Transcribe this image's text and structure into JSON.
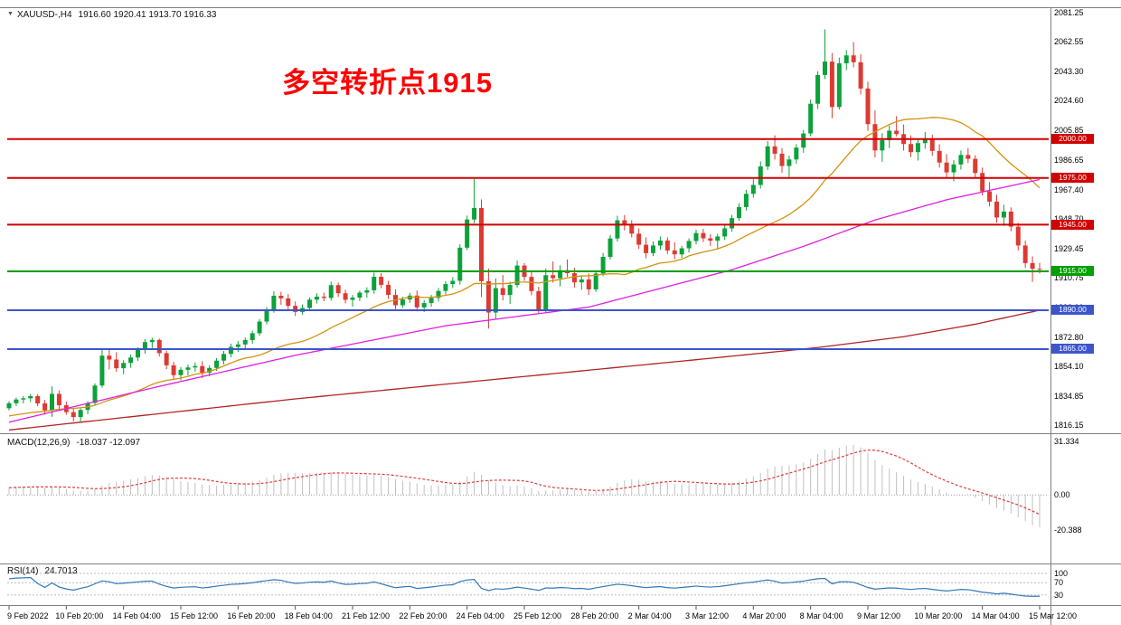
{
  "header": {
    "symbol": "XAUUSD-,H4",
    "ohlc": "1916.60 1920.41 1913.70 1916.33"
  },
  "annotation": {
    "text": "多空转折点1915",
    "color": "#ff0000"
  },
  "panels": {
    "macd": {
      "name_label": "MACD(12,26,9)",
      "value_label": "-18.037 -12.097",
      "ylim": [
        -39,
        35
      ],
      "axis": [
        {
          "label": "31.334",
          "value": 31.334
        },
        {
          "label": "0.00",
          "value": 0
        },
        {
          "label": "-20.388",
          "value": -20.388
        }
      ]
    },
    "rsi": {
      "name_label": "RSI(14)",
      "value_label": "24.7013",
      "ylim": [
        0,
        100
      ],
      "levels": [
        100,
        70,
        30
      ],
      "axis": [
        {
          "label": "100",
          "value": 100
        },
        {
          "label": "70",
          "value": 70
        },
        {
          "label": "30",
          "value": 30
        }
      ]
    }
  },
  "chart_data": {
    "type": "candlestick",
    "symbol": "XAUUSD",
    "timeframe": "H4",
    "colors": {
      "up": "#0ca13a",
      "down": "#dc3a32"
    },
    "price_axis": {
      "min": 1816.15,
      "max": 2081.25,
      "ticks": [
        "2081.25",
        "2062.55",
        "2043.30",
        "2024.60",
        "2005.85",
        "1986.65",
        "1967.40",
        "1948.70",
        "1929.45",
        "1910.75",
        "1892.00",
        "1872.80",
        "1854.10",
        "1834.85",
        "1816.15"
      ]
    },
    "bars_per_label": 8,
    "time_labels": [
      "9 Feb 2022",
      "10 Feb 20:00",
      "14 Feb 04:00",
      "15 Feb 12:00",
      "16 Feb 20:00",
      "18 Feb 04:00",
      "21 Feb 12:00",
      "22 Feb 20:00",
      "24 Feb 04:00",
      "25 Feb 12:00",
      "28 Feb 20:00",
      "2 Mar 04:00",
      "3 Mar 12:00",
      "4 Mar 20:00",
      "8 Mar 04:00",
      "9 Mar 12:00",
      "10 Mar 20:00",
      "14 Mar 04:00",
      "15 Mar 12:00"
    ],
    "levels": [
      {
        "price": 2000.0,
        "label": "2000.00",
        "color": "#d10000"
      },
      {
        "price": 1975.0,
        "label": "1975.00",
        "color": "#d10000"
      },
      {
        "price": 1945.0,
        "label": "1945.00",
        "color": "#d10000"
      },
      {
        "price": 1915.0,
        "label": "1915.00",
        "color": "#00a000"
      },
      {
        "price": 1890.0,
        "label": "1890.00",
        "color": "#3c55cc"
      },
      {
        "price": 1865.0,
        "label": "1865.00",
        "color": "#3c55cc"
      }
    ],
    "moving_averages": {
      "fast": {
        "type": "sma",
        "period": 21,
        "color": "#d4920f"
      },
      "mid": {
        "type": "anchors",
        "color": "#df1fdf",
        "points": [
          [
            0,
            1818
          ],
          [
            20,
            1840
          ],
          [
            40,
            1861
          ],
          [
            61,
            1880
          ],
          [
            81,
            1892
          ],
          [
            101,
            1916
          ],
          [
            111,
            1931
          ],
          [
            121,
            1948
          ],
          [
            131,
            1961
          ],
          [
            141,
            1971
          ],
          [
            144,
            1974
          ]
        ]
      },
      "slow": {
        "type": "anchors",
        "color": "#b22222",
        "points": [
          [
            0,
            1813
          ],
          [
            20,
            1823
          ],
          [
            40,
            1833
          ],
          [
            60,
            1842
          ],
          [
            80,
            1851
          ],
          [
            100,
            1860
          ],
          [
            113,
            1866
          ],
          [
            125,
            1873
          ],
          [
            135,
            1881
          ],
          [
            144,
            1890
          ]
        ]
      }
    },
    "indicators": {
      "macd": {
        "fast": 12,
        "slow": 26,
        "signal": 9,
        "hist_color": "#c0c0c0",
        "signal_color": "#e03c3c",
        "current": [
          -18.037,
          -12.097
        ]
      },
      "rsi": {
        "period": 14,
        "color": "#3178b8",
        "current": 24.7013
      }
    },
    "candles": [
      [
        1827.0,
        1831.5,
        1825.5,
        1830.2
      ],
      [
        1830.2,
        1833.8,
        1828.4,
        1832.6
      ],
      [
        1832.6,
        1834.9,
        1830.1,
        1833.4
      ],
      [
        1833.4,
        1836.2,
        1831.0,
        1834.8
      ],
      [
        1834.8,
        1836.0,
        1828.3,
        1830.1
      ],
      [
        1830.1,
        1832.4,
        1823.0,
        1825.6
      ],
      [
        1825.6,
        1841.0,
        1821.5,
        1836.2
      ],
      [
        1836.2,
        1838.4,
        1826.0,
        1828.9
      ],
      [
        1828.9,
        1831.2,
        1822.8,
        1824.5
      ],
      [
        1824.5,
        1827.0,
        1818.5,
        1821.3
      ],
      [
        1821.3,
        1826.8,
        1817.8,
        1825.9
      ],
      [
        1825.9,
        1831.5,
        1823.2,
        1830.4
      ],
      [
        1830.4,
        1843.0,
        1829.0,
        1841.6
      ],
      [
        1841.6,
        1865.5,
        1840.2,
        1860.8
      ],
      [
        1860.8,
        1864.9,
        1852.0,
        1858.3
      ],
      [
        1858.3,
        1863.0,
        1850.5,
        1852.7
      ],
      [
        1852.7,
        1857.9,
        1848.8,
        1856.1
      ],
      [
        1856.1,
        1861.4,
        1853.0,
        1859.6
      ],
      [
        1859.6,
        1866.2,
        1857.4,
        1864.8
      ],
      [
        1864.8,
        1871.4,
        1862.0,
        1869.5
      ],
      [
        1869.5,
        1872.3,
        1865.7,
        1870.9
      ],
      [
        1870.9,
        1871.8,
        1860.3,
        1862.4
      ],
      [
        1862.4,
        1864.0,
        1852.1,
        1854.6
      ],
      [
        1854.6,
        1856.8,
        1845.2,
        1848.3
      ],
      [
        1848.3,
        1853.5,
        1844.9,
        1851.7
      ],
      [
        1851.7,
        1855.0,
        1848.1,
        1853.2
      ],
      [
        1853.2,
        1856.4,
        1850.4,
        1854.1
      ],
      [
        1854.1,
        1857.2,
        1846.3,
        1849.8
      ],
      [
        1849.8,
        1854.6,
        1847.5,
        1852.9
      ],
      [
        1852.9,
        1859.3,
        1851.0,
        1857.6
      ],
      [
        1857.6,
        1863.8,
        1855.2,
        1861.9
      ],
      [
        1861.9,
        1868.5,
        1859.7,
        1866.4
      ],
      [
        1866.4,
        1870.2,
        1863.1,
        1868.0
      ],
      [
        1868.0,
        1872.4,
        1865.3,
        1870.8
      ],
      [
        1870.8,
        1876.9,
        1868.5,
        1875.2
      ],
      [
        1875.2,
        1884.3,
        1873.6,
        1882.7
      ],
      [
        1882.7,
        1892.0,
        1880.9,
        1890.1
      ],
      [
        1890.1,
        1902.2,
        1888.4,
        1899.3
      ],
      [
        1899.3,
        1901.8,
        1893.5,
        1897.6
      ],
      [
        1897.6,
        1900.4,
        1890.2,
        1892.8
      ],
      [
        1892.8,
        1895.6,
        1886.3,
        1888.9
      ],
      [
        1888.9,
        1893.7,
        1887.1,
        1891.4
      ],
      [
        1891.4,
        1898.2,
        1889.6,
        1896.8
      ],
      [
        1896.8,
        1900.9,
        1894.3,
        1898.7
      ],
      [
        1898.7,
        1901.3,
        1895.8,
        1897.9
      ],
      [
        1897.9,
        1908.4,
        1896.2,
        1906.1
      ],
      [
        1906.1,
        1907.8,
        1898.5,
        1900.9
      ],
      [
        1900.9,
        1903.2,
        1894.4,
        1896.7
      ],
      [
        1896.7,
        1899.8,
        1892.3,
        1898.1
      ],
      [
        1898.1,
        1902.6,
        1895.9,
        1901.3
      ],
      [
        1901.3,
        1904.7,
        1898.0,
        1902.8
      ],
      [
        1902.8,
        1914.2,
        1900.6,
        1911.5
      ],
      [
        1911.5,
        1913.8,
        1904.1,
        1906.3
      ],
      [
        1906.3,
        1908.9,
        1897.2,
        1899.8
      ],
      [
        1899.8,
        1903.4,
        1890.7,
        1893.2
      ],
      [
        1893.2,
        1898.6,
        1891.5,
        1896.9
      ],
      [
        1896.9,
        1901.2,
        1894.8,
        1899.4
      ],
      [
        1899.4,
        1902.7,
        1889.3,
        1891.8
      ],
      [
        1891.8,
        1896.4,
        1888.9,
        1894.6
      ],
      [
        1894.6,
        1899.8,
        1892.2,
        1897.9
      ],
      [
        1897.9,
        1904.3,
        1895.6,
        1902.4
      ],
      [
        1902.4,
        1908.7,
        1900.1,
        1906.8
      ],
      [
        1906.8,
        1911.3,
        1904.2,
        1908.9
      ],
      [
        1908.9,
        1932.5,
        1906.4,
        1930.2
      ],
      [
        1930.2,
        1950.8,
        1928.6,
        1948.3
      ],
      [
        1948.3,
        1974.3,
        1946.0,
        1955.7
      ],
      [
        1955.7,
        1961.2,
        1898.4,
        1908.6
      ],
      [
        1908.6,
        1916.8,
        1878.2,
        1888.5
      ],
      [
        1888.5,
        1910.4,
        1884.7,
        1904.2
      ],
      [
        1904.2,
        1912.6,
        1896.3,
        1899.8
      ],
      [
        1899.8,
        1908.4,
        1894.1,
        1906.2
      ],
      [
        1906.2,
        1921.9,
        1904.5,
        1918.7
      ],
      [
        1918.7,
        1920.3,
        1908.9,
        1911.4
      ],
      [
        1911.4,
        1914.8,
        1899.6,
        1902.3
      ],
      [
        1902.3,
        1905.1,
        1887.6,
        1890.4
      ],
      [
        1890.4,
        1916.8,
        1888.2,
        1912.5
      ],
      [
        1912.5,
        1921.4,
        1907.8,
        1910.6
      ],
      [
        1910.6,
        1918.9,
        1905.3,
        1915.7
      ],
      [
        1915.7,
        1922.6,
        1911.4,
        1913.8
      ],
      [
        1913.8,
        1917.2,
        1904.6,
        1907.9
      ],
      [
        1907.9,
        1912.4,
        1903.1,
        1909.8
      ],
      [
        1909.8,
        1913.6,
        1899.8,
        1903.4
      ],
      [
        1903.4,
        1915.2,
        1901.7,
        1913.6
      ],
      [
        1913.6,
        1926.8,
        1911.9,
        1924.3
      ],
      [
        1924.3,
        1938.4,
        1922.6,
        1936.1
      ],
      [
        1936.1,
        1950.7,
        1934.2,
        1947.8
      ],
      [
        1947.8,
        1951.2,
        1941.3,
        1944.6
      ],
      [
        1944.6,
        1947.9,
        1936.8,
        1939.2
      ],
      [
        1939.2,
        1942.6,
        1929.4,
        1932.1
      ],
      [
        1932.1,
        1936.8,
        1923.3,
        1926.7
      ],
      [
        1926.7,
        1934.2,
        1924.8,
        1931.6
      ],
      [
        1931.6,
        1937.4,
        1928.9,
        1934.8
      ],
      [
        1934.8,
        1936.9,
        1926.2,
        1928.4
      ],
      [
        1928.4,
        1933.7,
        1922.8,
        1925.9
      ],
      [
        1925.9,
        1931.4,
        1923.6,
        1929.8
      ],
      [
        1929.8,
        1936.2,
        1927.1,
        1934.5
      ],
      [
        1934.5,
        1941.8,
        1932.3,
        1939.6
      ],
      [
        1939.6,
        1942.3,
        1933.8,
        1936.2
      ],
      [
        1936.2,
        1938.9,
        1931.4,
        1934.7
      ],
      [
        1934.7,
        1939.2,
        1929.6,
        1937.4
      ],
      [
        1937.4,
        1944.8,
        1935.1,
        1942.6
      ],
      [
        1942.6,
        1951.3,
        1940.4,
        1949.2
      ],
      [
        1949.2,
        1958.7,
        1947.5,
        1956.3
      ],
      [
        1956.3,
        1967.4,
        1954.1,
        1964.8
      ],
      [
        1964.8,
        1974.2,
        1962.3,
        1970.5
      ],
      [
        1970.5,
        1985.6,
        1968.2,
        1982.4
      ],
      [
        1982.4,
        1998.7,
        1980.1,
        1995.3
      ],
      [
        1995.3,
        2002.4,
        1986.8,
        1990.6
      ],
      [
        1990.6,
        1994.2,
        1978.3,
        1982.7
      ],
      [
        1982.7,
        1989.4,
        1975.6,
        1986.9
      ],
      [
        1986.9,
        1996.8,
        1984.2,
        1994.5
      ],
      [
        1994.5,
        2005.8,
        1991.2,
        2003.6
      ],
      [
        2003.6,
        2025.4,
        2001.8,
        2022.7
      ],
      [
        2022.7,
        2043.6,
        2019.4,
        2041.2
      ],
      [
        2041.2,
        2070.5,
        2038.6,
        2049.8
      ],
      [
        2049.8,
        2055.3,
        2013.4,
        2020.6
      ],
      [
        2020.6,
        2052.4,
        2018.9,
        2048.7
      ],
      [
        2048.7,
        2057.2,
        2044.3,
        2053.8
      ],
      [
        2053.8,
        2062.3,
        2046.1,
        2049.4
      ],
      [
        2049.4,
        2054.6,
        2028.7,
        2032.5
      ],
      [
        2032.5,
        2036.8,
        2005.3,
        2009.6
      ],
      [
        2009.6,
        2018.4,
        1988.2,
        1992.7
      ],
      [
        1992.7,
        2003.8,
        1985.4,
        1999.3
      ],
      [
        1999.3,
        2008.6,
        1994.2,
        2005.4
      ],
      [
        2005.4,
        2014.8,
        2001.7,
        2003.2
      ],
      [
        2003.2,
        2009.4,
        1992.6,
        1996.8
      ],
      [
        1996.8,
        2002.3,
        1988.4,
        1991.6
      ],
      [
        1991.6,
        1999.7,
        1986.2,
        1997.4
      ],
      [
        1997.4,
        2004.6,
        1993.8,
        2000.2
      ],
      [
        2000.2,
        2002.8,
        1989.3,
        1992.4
      ],
      [
        1992.4,
        1996.7,
        1981.6,
        1984.9
      ],
      [
        1984.9,
        1990.3,
        1975.2,
        1978.6
      ],
      [
        1978.6,
        1986.4,
        1972.8,
        1983.7
      ],
      [
        1983.7,
        1992.6,
        1980.4,
        1989.8
      ],
      [
        1989.8,
        1994.2,
        1984.6,
        1987.3
      ],
      [
        1987.3,
        1989.6,
        1975.4,
        1978.2
      ],
      [
        1978.2,
        1981.7,
        1963.8,
        1966.4
      ],
      [
        1966.4,
        1972.3,
        1956.7,
        1959.8
      ],
      [
        1959.8,
        1964.2,
        1946.3,
        1949.6
      ],
      [
        1949.6,
        1957.8,
        1944.2,
        1953.4
      ],
      [
        1953.4,
        1956.1,
        1940.8,
        1943.7
      ],
      [
        1943.7,
        1946.2,
        1928.4,
        1931.6
      ],
      [
        1931.6,
        1934.8,
        1917.2,
        1920.3
      ],
      [
        1920.3,
        1924.6,
        1908.2,
        1916.6
      ],
      [
        1916.6,
        1920.41,
        1913.7,
        1916.33
      ]
    ]
  }
}
